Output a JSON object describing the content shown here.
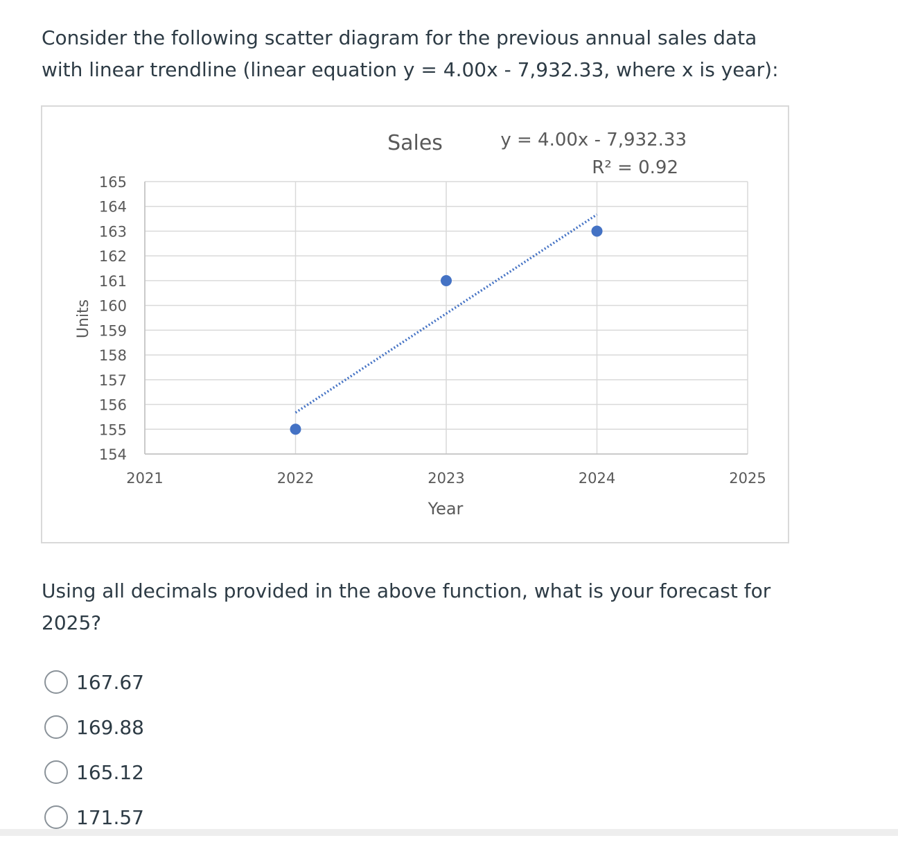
{
  "question": {
    "line1": "Consider the following scatter diagram for the previous annual sales data",
    "line2": "with linear trendline (linear equation y = 4.00x - 7,932.33, where x is year):"
  },
  "chart_data": {
    "type": "scatter",
    "title": "Sales",
    "xlabel": "Year",
    "ylabel": "Units",
    "xlim": [
      2021,
      2025
    ],
    "ylim": [
      154,
      165
    ],
    "x_ticks": [
      2021,
      2022,
      2023,
      2024,
      2025
    ],
    "y_ticks": [
      154,
      155,
      156,
      157,
      158,
      159,
      160,
      161,
      162,
      163,
      164,
      165
    ],
    "series": [
      {
        "x": [
          2022,
          2023,
          2024
        ],
        "values": [
          155,
          161,
          163
        ],
        "color": "#4472c4"
      }
    ],
    "trendline": {
      "type": "linear",
      "equation": "y = 4.00x - 7,932.33",
      "r_squared": "R² = 0.92",
      "x_start": 2022,
      "x_end": 2024,
      "y_start": 155.67,
      "y_end": 163.67,
      "style": "dotted",
      "color": "#4472c4"
    },
    "grid": true
  },
  "prompt": {
    "text": "Using all decimals provided in the above function, what is your forecast for 2025?"
  },
  "options": [
    {
      "label": "167.67"
    },
    {
      "label": "169.88"
    },
    {
      "label": "165.12"
    },
    {
      "label": "171.57"
    }
  ]
}
